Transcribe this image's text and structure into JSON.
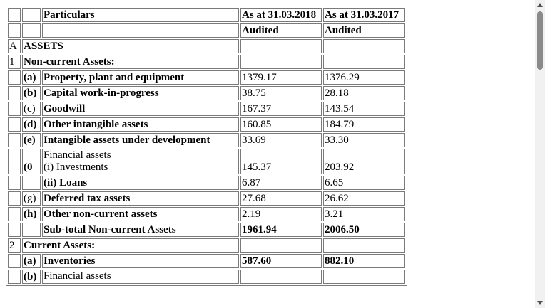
{
  "table": {
    "header": {
      "particulars": "Particulars",
      "col2018": "As at 31.03.2018",
      "col2017": "As at 31.03.2017",
      "audited2018": "Audited",
      "audited2017": "Audited"
    },
    "rows": [
      {
        "a": "A",
        "b": "ASSETS",
        "label": "",
        "v1": "",
        "v2": ""
      },
      {
        "a": "1",
        "b": "Non-current Assets:",
        "label": "",
        "v1": "",
        "v2": ""
      },
      {
        "a": "",
        "b": "(a)",
        "label": "Property, plant and equipment",
        "v1": "1379.17",
        "v2": "1376.29"
      },
      {
        "a": "",
        "b": "(b)",
        "label": "Capital work-in-progress",
        "v1": "38.75",
        "v2": "28.18"
      },
      {
        "a": "",
        "b": "(c)",
        "label": "Goodwill",
        "v1": "167.37",
        "v2": "143.54"
      },
      {
        "a": "",
        "b": "(d)",
        "label": "Other intangible assets",
        "v1": "160.85",
        "v2": "184.79"
      },
      {
        "a": "",
        "b": "(e)",
        "label": "Intangible assets under development",
        "v1": "33.69",
        "v2": "33.30"
      },
      {
        "a": "",
        "b": "(0",
        "label": "Financial assets",
        "label2": "(i) Investments",
        "v1": "145.37",
        "v2": "203.92"
      },
      {
        "a": "",
        "b": "",
        "label": "(ii) Loans",
        "v1": "6.87",
        "v2": "6.65"
      },
      {
        "a": "",
        "b": "(g)",
        "label": "Deferred tax assets",
        "v1": "27.68",
        "v2": "26.62"
      },
      {
        "a": "",
        "b": "(h)",
        "label": "Other non-current assets",
        "v1": "2.19",
        "v2": "3.21"
      },
      {
        "a": "",
        "b": "",
        "label": "Sub-total Non-current Assets",
        "v1": "1961.94",
        "v2": "2006.50"
      },
      {
        "a": "2",
        "b": "Current Assets:",
        "label": "",
        "v1": "",
        "v2": ""
      },
      {
        "a": "",
        "b": "(a)",
        "label": "Inventories",
        "v1": "587.60",
        "v2": "882.10"
      },
      {
        "a": "",
        "b": "(b)",
        "label": "Financial assets",
        "v1": "",
        "v2": ""
      }
    ]
  },
  "scrollbar": {
    "position_fraction": 0.0
  }
}
